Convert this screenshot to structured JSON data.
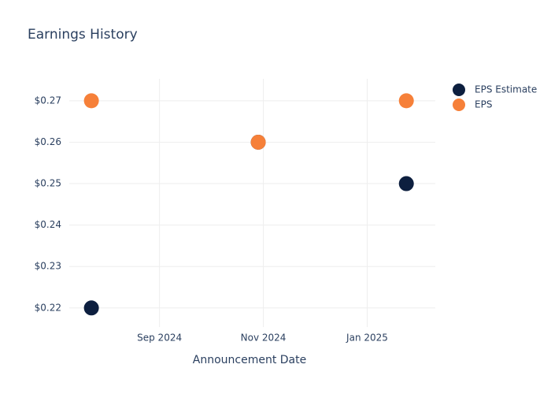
{
  "chart_data": {
    "type": "scatter",
    "title": "Earnings History",
    "x_label": "Announcement Date",
    "x": [
      "2024-07-23",
      "2024-10-29",
      "2025-01-24"
    ],
    "series": [
      {
        "name": "EPS Estimate",
        "color": "#0d1f3f",
        "values": [
          0.22,
          0.26,
          0.25
        ]
      },
      {
        "name": "EPS",
        "color": "#f68039",
        "values": [
          0.27,
          0.26,
          0.27
        ]
      }
    ],
    "xlim": [
      "2024-07-10",
      "2025-02-10"
    ],
    "xticks": [
      {
        "value": "2024-09-01",
        "label": "Sep 2024"
      },
      {
        "value": "2024-11-01",
        "label": "Nov 2024"
      },
      {
        "value": "2025-01-01",
        "label": "Jan 2025"
      }
    ],
    "ylim": [
      0.2154,
      0.2753
    ],
    "yticks": [
      {
        "value": 0.22,
        "label": "$0.22"
      },
      {
        "value": 0.23,
        "label": "$0.23"
      },
      {
        "value": 0.24,
        "label": "$0.24"
      },
      {
        "value": 0.25,
        "label": "$0.25"
      },
      {
        "value": 0.26,
        "label": "$0.26"
      },
      {
        "value": 0.27,
        "label": "$0.27"
      }
    ],
    "grid": true,
    "legend": "top-right"
  }
}
